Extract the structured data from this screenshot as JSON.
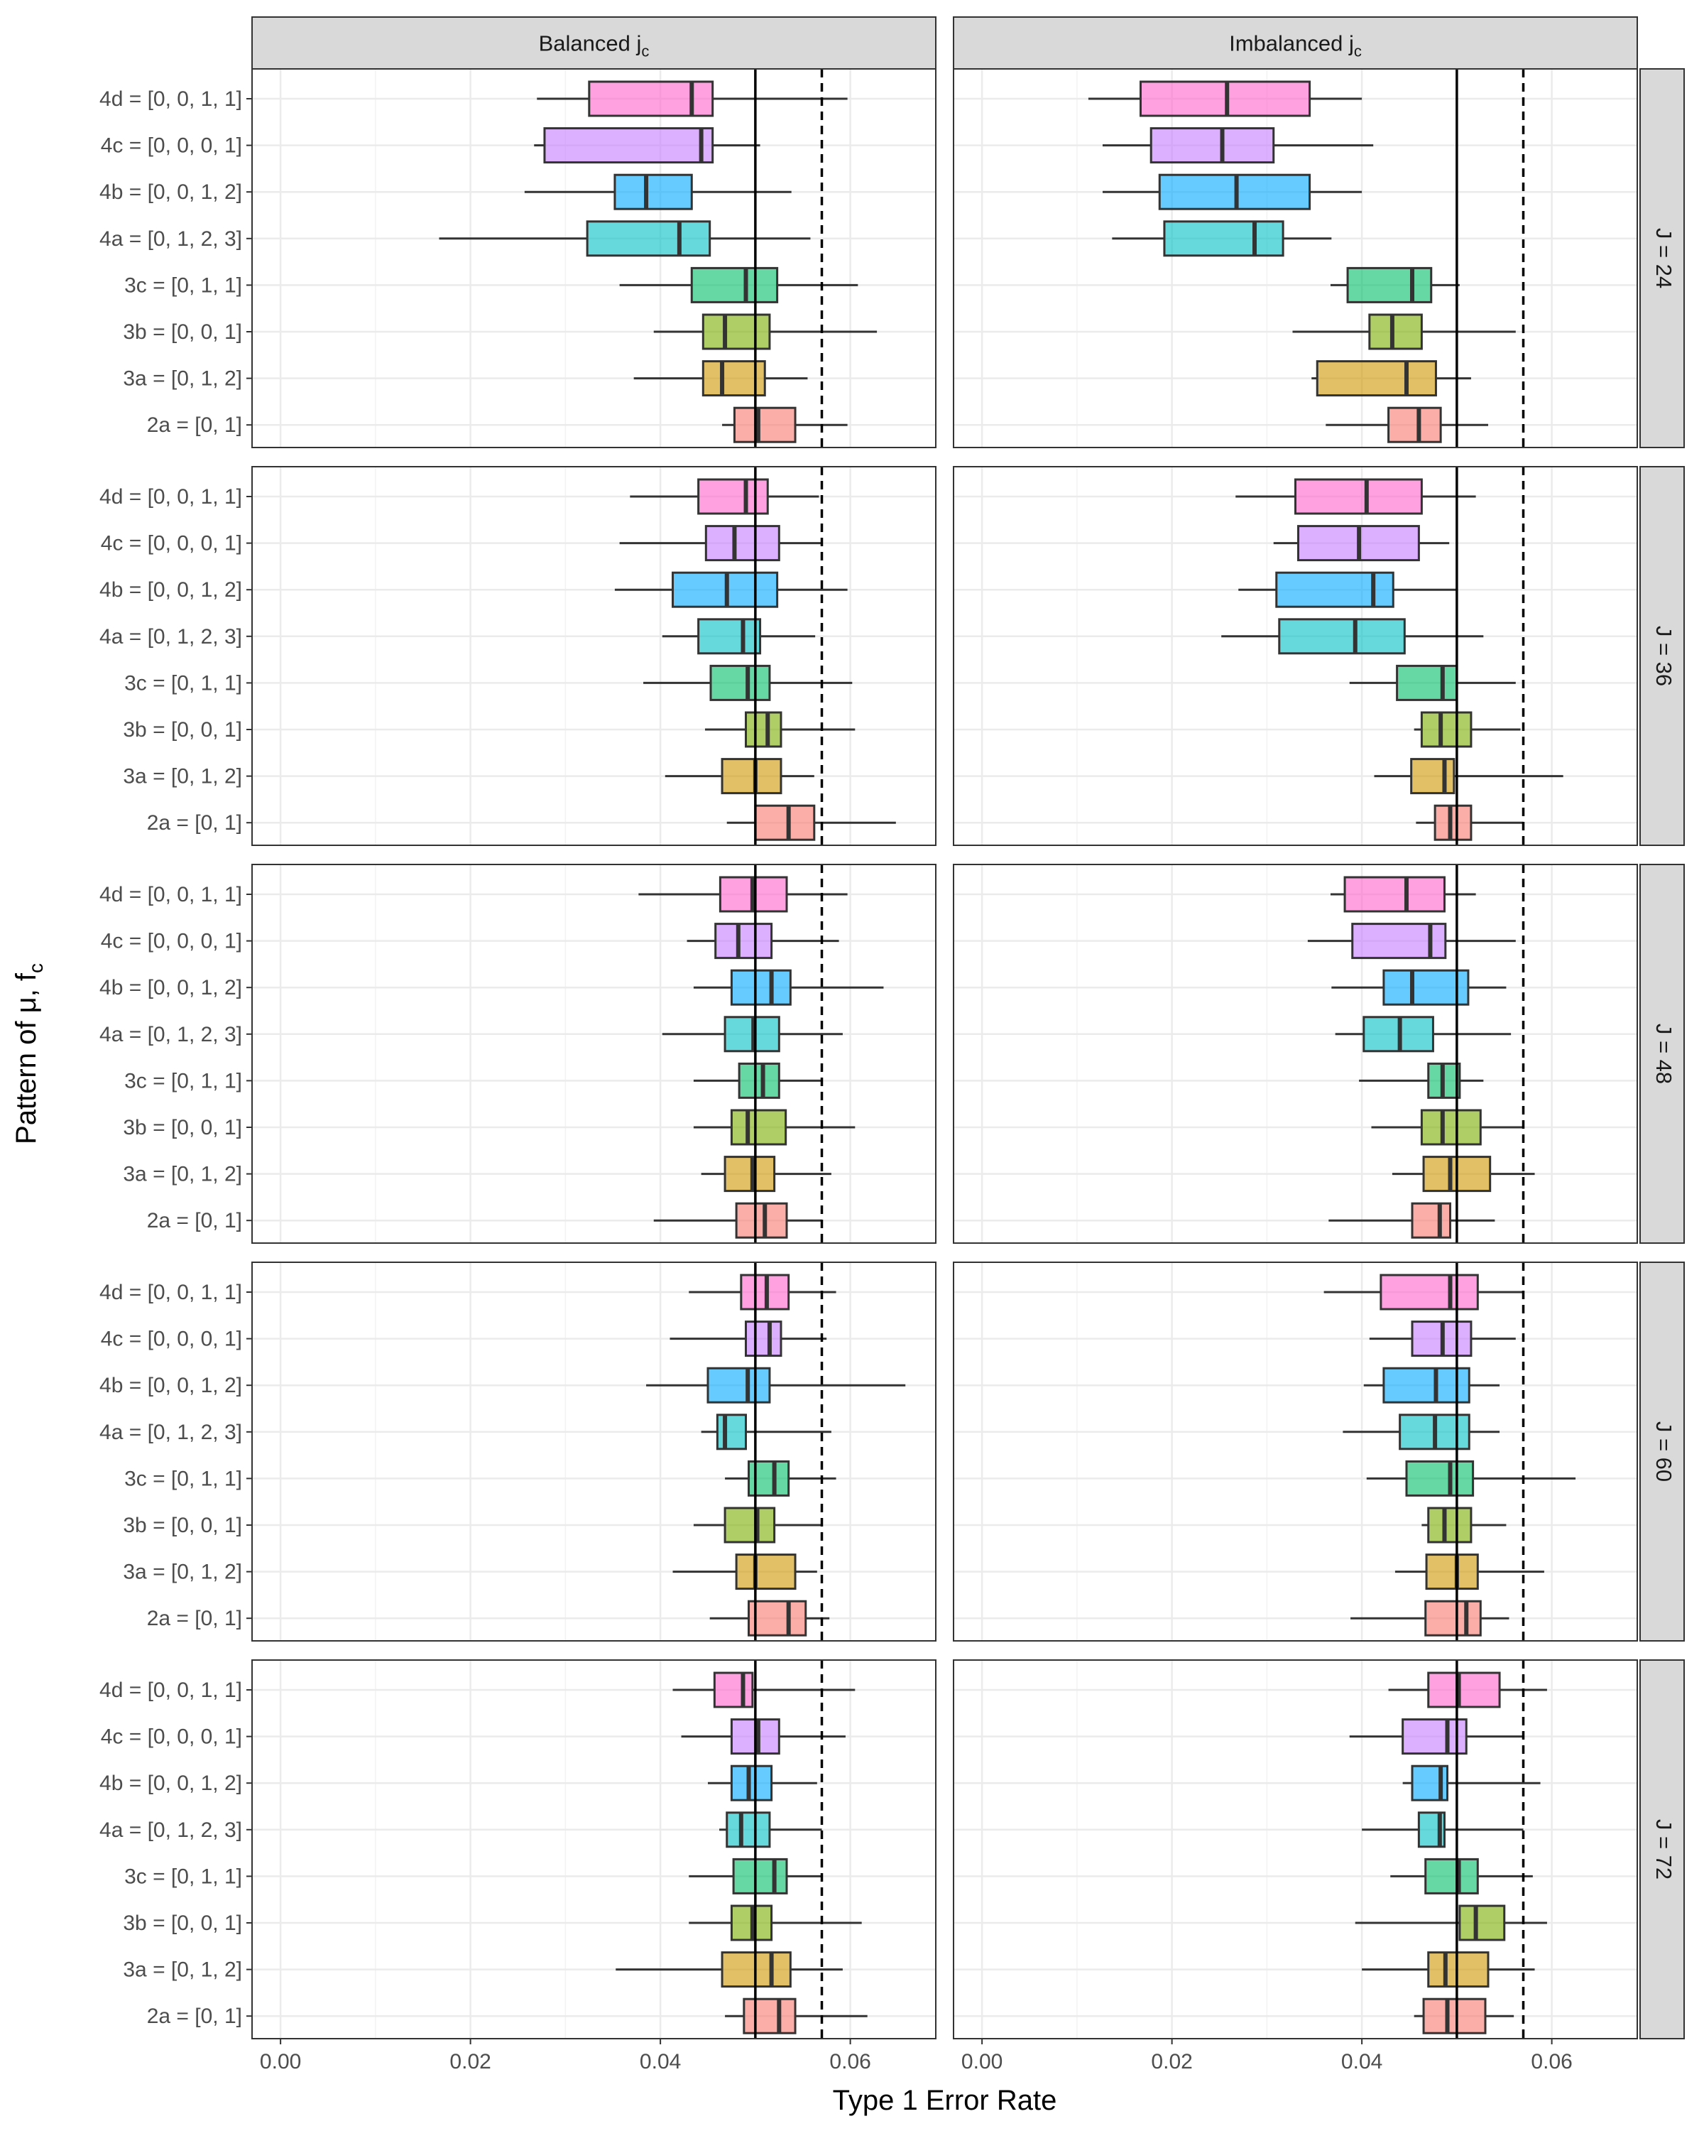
{
  "chart_data": {
    "type": "boxplot",
    "xlabel": "Type 1 Error Rate",
    "ylabel_main": "Pattern of μ, f",
    "ylabel_sub": "c",
    "xlim": [
      -0.003,
      0.069
    ],
    "x_ticks": [
      0.0,
      0.02,
      0.04,
      0.06
    ],
    "x_tick_labels": [
      "0.00",
      "0.02",
      "0.04",
      "0.06"
    ],
    "reference_lines": {
      "solid": 0.05,
      "dashed": 0.057
    },
    "columns": [
      {
        "label": "Balanced j",
        "sub": "c"
      },
      {
        "label": "Imbalanced j",
        "sub": "c"
      }
    ],
    "rows": [
      "J = 24",
      "J = 36",
      "J = 48",
      "J = 60",
      "J = 72"
    ],
    "categories": [
      "4d = [0, 0, 1, 1]",
      "4c = [0, 0, 0, 1]",
      "4b = [0, 0, 1, 2]",
      "4a = [0, 1, 2, 3]",
      "3c = [0, 1, 1]",
      "3b = [0, 0, 1]",
      "3a = [0, 1, 2]",
      "2a = [0, 1]"
    ],
    "category_colors": [
      "#FF61CC",
      "#C77CFF",
      "#00A9FF",
      "#00BFC4",
      "#00BE67",
      "#7CAE00",
      "#CD9600",
      "#F8766D"
    ],
    "box_stats_order": [
      "whisker_low",
      "q1",
      "median",
      "q3",
      "whisker_high"
    ],
    "panels": [
      {
        "row": "J = 24",
        "col": "Balanced",
        "boxes": [
          [
            0.027,
            0.0325,
            0.0433,
            0.0455,
            0.0597
          ],
          [
            0.0267,
            0.0278,
            0.0443,
            0.0455,
            0.0505
          ],
          [
            0.0257,
            0.0352,
            0.0385,
            0.0433,
            0.0538
          ],
          [
            0.0167,
            0.0323,
            0.042,
            0.0452,
            0.0558
          ],
          [
            0.0357,
            0.0433,
            0.049,
            0.0523,
            0.0608
          ],
          [
            0.0393,
            0.0445,
            0.0468,
            0.0515,
            0.0628
          ],
          [
            0.0372,
            0.0445,
            0.0465,
            0.051,
            0.0555
          ],
          [
            0.0465,
            0.0478,
            0.0503,
            0.0542,
            0.0597
          ]
        ]
      },
      {
        "row": "J = 24",
        "col": "Imbalanced",
        "boxes": [
          [
            0.0112,
            0.0167,
            0.0258,
            0.0345,
            0.04
          ],
          [
            0.0127,
            0.0178,
            0.0253,
            0.0307,
            0.0412
          ],
          [
            0.0127,
            0.0187,
            0.0268,
            0.0345,
            0.04
          ],
          [
            0.0137,
            0.0192,
            0.0287,
            0.0317,
            0.0368
          ],
          [
            0.0367,
            0.0385,
            0.0453,
            0.0473,
            0.0503
          ],
          [
            0.0327,
            0.0408,
            0.0432,
            0.0463,
            0.0562
          ],
          [
            0.0347,
            0.0353,
            0.0447,
            0.0478,
            0.0515
          ],
          [
            0.0362,
            0.0428,
            0.046,
            0.0483,
            0.0533
          ]
        ]
      },
      {
        "row": "J = 36",
        "col": "Balanced",
        "boxes": [
          [
            0.0368,
            0.044,
            0.049,
            0.0513,
            0.0567
          ],
          [
            0.0357,
            0.0448,
            0.0478,
            0.0525,
            0.057
          ],
          [
            0.0352,
            0.0413,
            0.047,
            0.0523,
            0.0597
          ],
          [
            0.0402,
            0.044,
            0.0487,
            0.0505,
            0.0563
          ],
          [
            0.0382,
            0.0453,
            0.0492,
            0.0515,
            0.0602
          ],
          [
            0.0447,
            0.049,
            0.0513,
            0.0527,
            0.0605
          ],
          [
            0.0405,
            0.0465,
            0.05,
            0.0527,
            0.0562
          ],
          [
            0.047,
            0.05,
            0.0535,
            0.0562,
            0.0648
          ]
        ]
      },
      {
        "row": "J = 36",
        "col": "Imbalanced",
        "boxes": [
          [
            0.0267,
            0.033,
            0.0405,
            0.0463,
            0.052
          ],
          [
            0.0307,
            0.0333,
            0.0397,
            0.046,
            0.0492
          ],
          [
            0.027,
            0.031,
            0.0412,
            0.0433,
            0.05
          ],
          [
            0.0252,
            0.0313,
            0.0393,
            0.0445,
            0.0528
          ],
          [
            0.0387,
            0.0437,
            0.0485,
            0.05,
            0.0562
          ],
          [
            0.0455,
            0.0463,
            0.0483,
            0.0515,
            0.0567
          ],
          [
            0.0413,
            0.0452,
            0.0487,
            0.0497,
            0.0612
          ],
          [
            0.0457,
            0.0477,
            0.0493,
            0.0515,
            0.057
          ]
        ]
      },
      {
        "row": "J = 48",
        "col": "Balanced",
        "boxes": [
          [
            0.0377,
            0.0463,
            0.0497,
            0.0533,
            0.0597
          ],
          [
            0.0428,
            0.0458,
            0.0482,
            0.0517,
            0.0588
          ],
          [
            0.0435,
            0.0475,
            0.0517,
            0.0537,
            0.0635
          ],
          [
            0.0402,
            0.0468,
            0.0498,
            0.0525,
            0.0592
          ],
          [
            0.0435,
            0.0483,
            0.0508,
            0.0525,
            0.057
          ],
          [
            0.0435,
            0.0475,
            0.0492,
            0.0532,
            0.0605
          ],
          [
            0.0443,
            0.0468,
            0.0497,
            0.052,
            0.058
          ],
          [
            0.0393,
            0.048,
            0.051,
            0.0533,
            0.057
          ]
        ]
      },
      {
        "row": "J = 48",
        "col": "Imbalanced",
        "boxes": [
          [
            0.0367,
            0.0382,
            0.0447,
            0.0487,
            0.052
          ],
          [
            0.0343,
            0.039,
            0.0472,
            0.0488,
            0.0562
          ],
          [
            0.0368,
            0.0423,
            0.0453,
            0.0512,
            0.0552
          ],
          [
            0.0372,
            0.0402,
            0.044,
            0.0475,
            0.0557
          ],
          [
            0.0397,
            0.047,
            0.0485,
            0.0503,
            0.0528
          ],
          [
            0.041,
            0.0463,
            0.0485,
            0.0525,
            0.057
          ],
          [
            0.0432,
            0.0465,
            0.0493,
            0.0535,
            0.0582
          ],
          [
            0.0365,
            0.0453,
            0.0482,
            0.0493,
            0.054
          ]
        ]
      },
      {
        "row": "J = 60",
        "col": "Balanced",
        "boxes": [
          [
            0.043,
            0.0485,
            0.0512,
            0.0535,
            0.0585
          ],
          [
            0.041,
            0.049,
            0.0515,
            0.0527,
            0.0575
          ],
          [
            0.0385,
            0.045,
            0.0492,
            0.0515,
            0.0658
          ],
          [
            0.0443,
            0.046,
            0.0468,
            0.049,
            0.058
          ],
          [
            0.0468,
            0.0493,
            0.052,
            0.0535,
            0.0585
          ],
          [
            0.0435,
            0.0468,
            0.0502,
            0.052,
            0.057
          ],
          [
            0.0413,
            0.048,
            0.05,
            0.0542,
            0.0565
          ],
          [
            0.0452,
            0.0493,
            0.0535,
            0.0553,
            0.0578
          ]
        ]
      },
      {
        "row": "J = 60",
        "col": "Imbalanced",
        "boxes": [
          [
            0.036,
            0.042,
            0.0493,
            0.0522,
            0.057
          ],
          [
            0.0408,
            0.0453,
            0.0485,
            0.0515,
            0.0562
          ],
          [
            0.0402,
            0.0423,
            0.0478,
            0.0513,
            0.0545
          ],
          [
            0.038,
            0.044,
            0.0477,
            0.0513,
            0.0545
          ],
          [
            0.0405,
            0.0447,
            0.0493,
            0.0517,
            0.0625
          ],
          [
            0.0463,
            0.047,
            0.0487,
            0.0515,
            0.0552
          ],
          [
            0.0435,
            0.0468,
            0.05,
            0.0522,
            0.0592
          ],
          [
            0.0388,
            0.0467,
            0.051,
            0.0525,
            0.0555
          ]
        ]
      },
      {
        "row": "J = 72",
        "col": "Balanced",
        "boxes": [
          [
            0.0413,
            0.0457,
            0.0487,
            0.0497,
            0.0605
          ],
          [
            0.0422,
            0.0475,
            0.0503,
            0.0525,
            0.0595
          ],
          [
            0.045,
            0.0475,
            0.0493,
            0.0517,
            0.0565
          ],
          [
            0.0462,
            0.047,
            0.0485,
            0.0515,
            0.057
          ],
          [
            0.043,
            0.0477,
            0.052,
            0.0533,
            0.057
          ],
          [
            0.043,
            0.0475,
            0.0497,
            0.0517,
            0.0612
          ],
          [
            0.0353,
            0.0465,
            0.0517,
            0.0537,
            0.0592
          ],
          [
            0.0468,
            0.0488,
            0.0525,
            0.0542,
            0.0618
          ]
        ]
      },
      {
        "row": "J = 72",
        "col": "Imbalanced",
        "boxes": [
          [
            0.0428,
            0.047,
            0.0502,
            0.0545,
            0.0595
          ],
          [
            0.0387,
            0.0443,
            0.049,
            0.051,
            0.057
          ],
          [
            0.0443,
            0.0453,
            0.0483,
            0.049,
            0.0588
          ],
          [
            0.04,
            0.046,
            0.0482,
            0.0487,
            0.057
          ],
          [
            0.043,
            0.0467,
            0.0502,
            0.0522,
            0.058
          ],
          [
            0.0393,
            0.0503,
            0.052,
            0.055,
            0.0595
          ],
          [
            0.04,
            0.047,
            0.0488,
            0.0533,
            0.0582
          ],
          [
            0.0455,
            0.0465,
            0.049,
            0.053,
            0.056
          ]
        ]
      }
    ]
  }
}
